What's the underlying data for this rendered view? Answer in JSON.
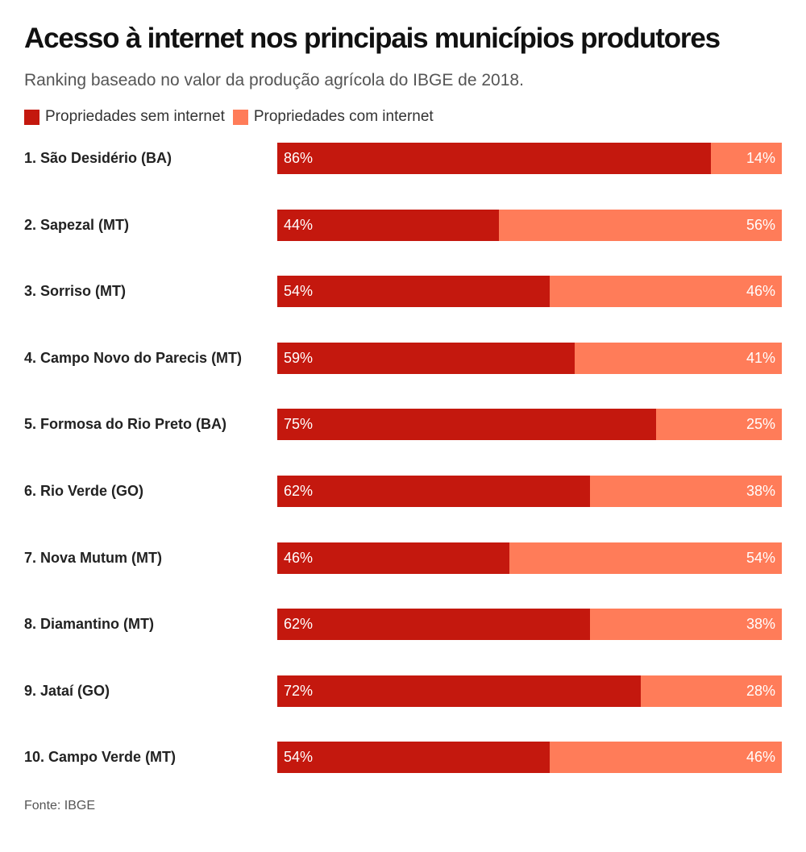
{
  "title": "Acesso à internet nos principais municípios produtores",
  "subtitle": "Ranking baseado no valor da produção agrícola do IBGE de 2018.",
  "source": "Fonte: IBGE",
  "colors": {
    "sem_internet": "#c4180e",
    "com_internet": "#ff7c59"
  },
  "chart_data": {
    "type": "bar",
    "orientation": "horizontal",
    "stacked": true,
    "percent_stacked": true,
    "title": "Acesso à internet nos principais municípios produtores",
    "subtitle": "Ranking baseado no valor da produção agrícola do IBGE de 2018.",
    "legend_position": "top-left",
    "grid": false,
    "xlim": [
      0,
      100
    ],
    "categories": [
      "1. São Desidério (BA)",
      "2. Sapezal (MT)",
      "3. Sorriso (MT)",
      "4. Campo Novo do Parecis (MT)",
      "5. Formosa do Rio Preto (BA)",
      "6. Rio Verde (GO)",
      "7. Nova Mutum (MT)",
      "8. Diamantino (MT)",
      "9. Jataí (GO)",
      "10. Campo Verde (MT)"
    ],
    "series": [
      {
        "name": "Propriedades sem internet",
        "color": "#c4180e",
        "values": [
          86,
          44,
          54,
          59,
          75,
          62,
          46,
          62,
          72,
          54
        ],
        "labels": [
          "86%",
          "44%",
          "54%",
          "59%",
          "75%",
          "62%",
          "46%",
          "62%",
          "72%",
          "54%"
        ]
      },
      {
        "name": "Propriedades com internet",
        "color": "#ff7c59",
        "values": [
          14,
          56,
          46,
          41,
          25,
          38,
          54,
          38,
          28,
          46
        ],
        "labels": [
          "14%",
          "56%",
          "46%",
          "41%",
          "25%",
          "38%",
          "54%",
          "38%",
          "28%",
          "46%"
        ]
      }
    ]
  }
}
